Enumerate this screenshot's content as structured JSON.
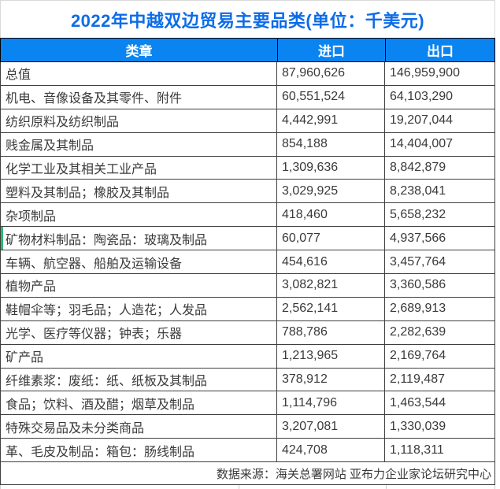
{
  "title": "2022年中越双边贸易主要品类(单位：千美元)",
  "colors": {
    "title_text": "#0d6ce8",
    "header_bg": "#0a84f0",
    "header_text": "#ffffff",
    "row_text": "#3a3a3a",
    "grid_border": "#3f3f3f",
    "accent_green": "#2eb873"
  },
  "table": {
    "columns": [
      "类章",
      "进口",
      "出口"
    ],
    "rows": [
      {
        "category": "总值",
        "imports": "87,960,626",
        "exports": "146,959,900",
        "accent": false
      },
      {
        "category": "机电、音像设备及其零件、附件",
        "imports": "60,551,524",
        "exports": "64,103,290",
        "accent": false
      },
      {
        "category": "纺织原料及纺织制品",
        "imports": "4,442,991",
        "exports": "19,207,044",
        "accent": false
      },
      {
        "category": "贱金属及其制品",
        "imports": "854,188",
        "exports": "14,404,007",
        "accent": false
      },
      {
        "category": "化学工业及其相关工业产品",
        "imports": "1,309,636",
        "exports": "8,842,879",
        "accent": false
      },
      {
        "category": "塑料及其制品；橡胶及其制品",
        "imports": "3,029,925",
        "exports": "8,238,041",
        "accent": false
      },
      {
        "category": "杂项制品",
        "imports": "418,460",
        "exports": "5,658,232",
        "accent": false
      },
      {
        "category": "矿物材料制品：陶瓷品：玻璃及制品",
        "imports": "60,077",
        "exports": "4,937,566",
        "accent": true
      },
      {
        "category": "车辆、航空器、船舶及运输设备",
        "imports": "454,616",
        "exports": "3,457,764",
        "accent": false
      },
      {
        "category": "植物产品",
        "imports": "3,082,821",
        "exports": "3,360,586",
        "accent": false
      },
      {
        "category": "鞋帽伞等；羽毛品；人造花；人发品",
        "imports": "2,562,141",
        "exports": "2,689,913",
        "accent": false
      },
      {
        "category": "光学、医疗等仪器；钟表；乐器",
        "imports": "788,786",
        "exports": "2,282,639",
        "accent": false
      },
      {
        "category": "矿产品",
        "imports": "1,213,965",
        "exports": "2,169,764",
        "accent": false
      },
      {
        "category": "纤维素浆：废纸：纸、纸板及其制品",
        "imports": "378,912",
        "exports": "2,119,487",
        "accent": false
      },
      {
        "category": "食品；饮料、酒及醋；烟草及制品",
        "imports": "1,114,796",
        "exports": "1,463,544",
        "accent": false
      },
      {
        "category": "特殊交易品及未分类商品",
        "imports": "3,207,081",
        "exports": "1,330,039",
        "accent": false
      },
      {
        "category": "革、毛皮及制品：箱包：肠线制品",
        "imports": "424,708",
        "exports": "1,118,311",
        "accent": false
      }
    ]
  },
  "footer": {
    "source": "数据来源：海关总署网站 亚布力企业家论坛研究中心"
  },
  "chart_data": {
    "type": "table",
    "title": "2022年中越双边贸易主要品类(单位：千美元)",
    "unit": "千美元",
    "columns": [
      "类章",
      "进口",
      "出口"
    ],
    "categories": [
      "总值",
      "机电、音像设备及其零件、附件",
      "纺织原料及纺织制品",
      "贱金属及其制品",
      "化学工业及其相关工业产品",
      "塑料及其制品；橡胶及其制品",
      "杂项制品",
      "矿物材料制品：陶瓷品：玻璃及制品",
      "车辆、航空器、船舶及运输设备",
      "植物产品",
      "鞋帽伞等；羽毛品；人造花；人发品",
      "光学、医疗等仪器；钟表；乐器",
      "矿产品",
      "纤维素浆：废纸：纸、纸板及其制品",
      "食品；饮料、酒及醋；烟草及制品",
      "特殊交易品及未分类商品",
      "革、毛皮及制品：箱包：肠线制品"
    ],
    "series": [
      {
        "name": "进口",
        "values": [
          87960626,
          60551524,
          4442991,
          854188,
          1309636,
          3029925,
          418460,
          60077,
          454616,
          3082821,
          2562141,
          788786,
          1213965,
          378912,
          1114796,
          3207081,
          424708
        ]
      },
      {
        "name": "出口",
        "values": [
          146959900,
          64103290,
          19207044,
          14404007,
          8842879,
          8238041,
          5658232,
          4937566,
          3457764,
          3360586,
          2689913,
          2282639,
          2169764,
          2119487,
          1463544,
          1330039,
          1118311
        ]
      }
    ],
    "source": "数据来源：海关总署网站 亚布力企业家论坛研究中心"
  }
}
